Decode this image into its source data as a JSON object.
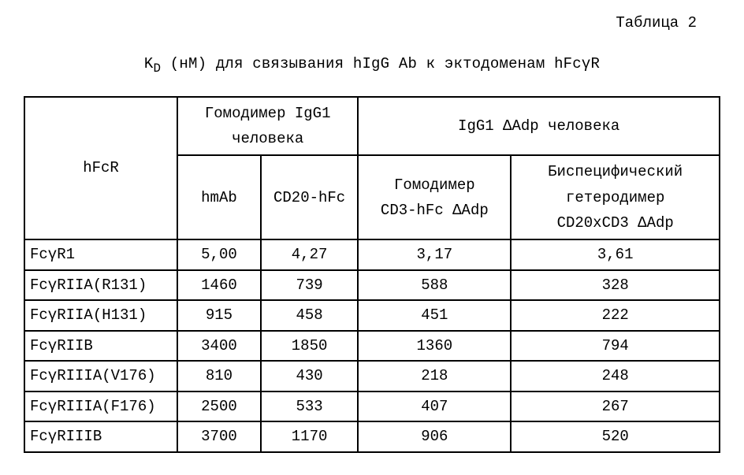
{
  "top_label": "Таблица 2",
  "title_html": "K<sub>D</sub> (нМ) для связывания hIgG Ab к эктодоменам hFcγR",
  "table": {
    "type": "table",
    "background_color": "#ffffff",
    "border_color": "#000000",
    "font_family": "Courier New",
    "font_size_pt": 14,
    "header": {
      "col1": "hFcR",
      "group1_line1": "Гомодимер IgG1",
      "group1_line2": "человека",
      "group2": "IgG1 ΔAdp человека",
      "sub_hmab": "hmAb",
      "sub_cd20": "CD20-hFc",
      "sub_col4_line1": "Гомодимер",
      "sub_col4_line2": "CD3-hFc ΔAdp",
      "sub_col5_line1": "Биспецифический",
      "sub_col5_line2": "гетеродимер",
      "sub_col5_line3": "CD20xCD3 ΔAdp"
    },
    "rows": [
      {
        "name": "FcγR1",
        "c2": "5,00",
        "c3": "4,27",
        "c4": "3,17",
        "c5": "3,61"
      },
      {
        "name": "FcγRIIA(R131)",
        "c2": "1460",
        "c3": "739",
        "c4": "588",
        "c5": "328"
      },
      {
        "name": "FcγRIIA(H131)",
        "c2": "915",
        "c3": "458",
        "c4": "451",
        "c5": "222"
      },
      {
        "name": "FcγRIIB",
        "c2": "3400",
        "c3": "1850",
        "c4": "1360",
        "c5": "794"
      },
      {
        "name": "FcγRIIIA(V176)",
        "c2": "810",
        "c3": "430",
        "c4": "218",
        "c5": "248"
      },
      {
        "name": "FcγRIIIA(F176)",
        "c2": "2500",
        "c3": "533",
        "c4": "407",
        "c5": "267"
      },
      {
        "name": "FcγRIIIB",
        "c2": "3700",
        "c3": "1170",
        "c4": "906",
        "c5": "520"
      }
    ]
  }
}
